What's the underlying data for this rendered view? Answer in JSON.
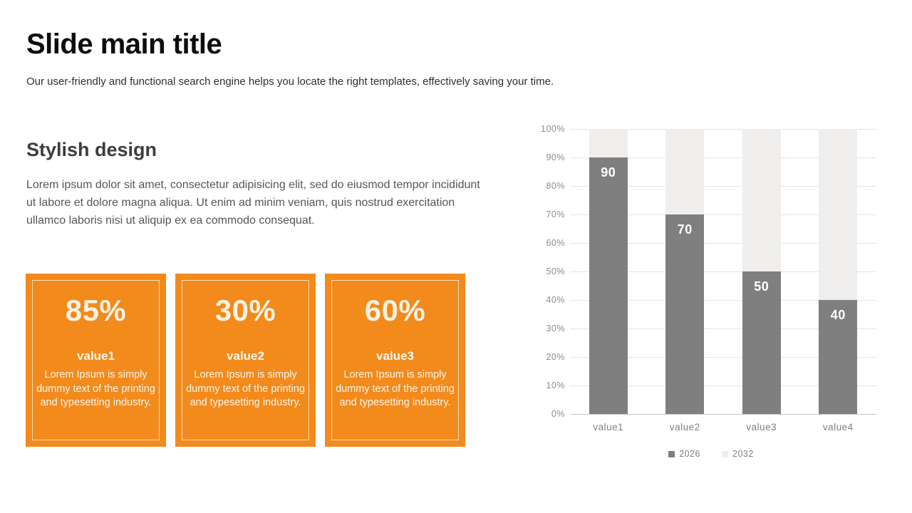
{
  "slide": {
    "title": "Slide main title",
    "subtitle": "Our user-friendly and functional search engine helps you locate the right templates, effectively saving your time.",
    "section": {
      "heading": "Stylish design",
      "body": "Lorem ipsum dolor sit amet, consectetur adipisicing elit, sed do eiusmod tempor incididunt ut labore et dolore magna aliqua. Ut enim ad minim veniam, quis nostrud exercitation ullamco laboris nisi ut aliquip ex ea commodo consequat."
    },
    "cards": [
      {
        "percent": "85%",
        "label": "value1",
        "text": "Lorem Ipsum is simply dummy text of the printing and typesetting industry."
      },
      {
        "percent": "30%",
        "label": "value2",
        "text": "Lorem Ipsum is simply dummy text of the printing and typesetting industry."
      },
      {
        "percent": "60%",
        "label": "value3",
        "text": "Lorem Ipsum is simply dummy text of the printing and typesetting industry."
      }
    ],
    "colors": {
      "accent_orange": "#F28A1C",
      "card_text": "#FDF6EA",
      "bar_dark": "#7F7F7F",
      "bar_light": "#EFEEED"
    }
  },
  "chart_data": {
    "type": "bar",
    "subtype": "stacked-100-percent-column",
    "title": "",
    "xlabel": "",
    "ylabel": "",
    "categories": [
      "value1",
      "value2",
      "value3",
      "value4"
    ],
    "series": [
      {
        "name": "2026",
        "color": "#7F7F7F",
        "values": [
          90,
          70,
          50,
          40
        ],
        "data_labels": [
          "90",
          "70",
          "50",
          "40"
        ]
      },
      {
        "name": "2032",
        "color": "#EFEEED",
        "values": [
          10,
          30,
          50,
          60
        ],
        "data_labels": []
      }
    ],
    "ylim": [
      0,
      100
    ],
    "y_ticks": [
      "100%",
      "90%",
      "80%",
      "70%",
      "60%",
      "50%",
      "40%",
      "30%",
      "20%",
      "10%",
      "0%"
    ],
    "grid": true,
    "legend_position": "bottom"
  }
}
